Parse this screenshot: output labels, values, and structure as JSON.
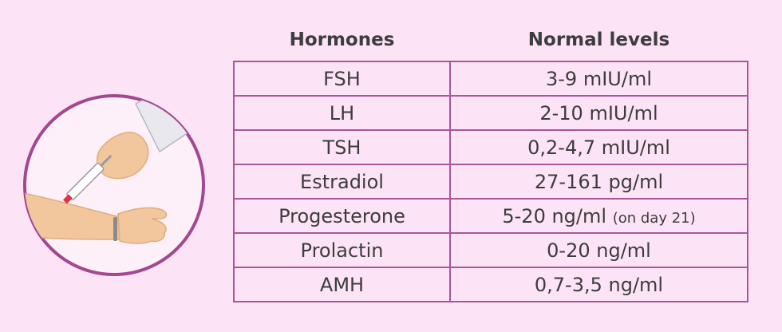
{
  "table": {
    "header": [
      "Hormones",
      "Normal levels"
    ],
    "rows": [
      {
        "hormone": "FSH",
        "level": "3-9 mIU/ml"
      },
      {
        "hormone": "LH",
        "level": "2-10 mIU/ml"
      },
      {
        "hormone": "TSH",
        "level": "0,2-4,7 mIU/ml"
      },
      {
        "hormone": "Estradiol",
        "level": "27-161 pg/ml"
      },
      {
        "hormone": "Progesterone",
        "level": "5-20 ng/ml",
        "note": "(on day 21)"
      },
      {
        "hormone": "Prolactin",
        "level": "0-20 ng/ml"
      },
      {
        "hormone": "AMH",
        "level": "0,7-3,5 ng/ml"
      }
    ]
  }
}
